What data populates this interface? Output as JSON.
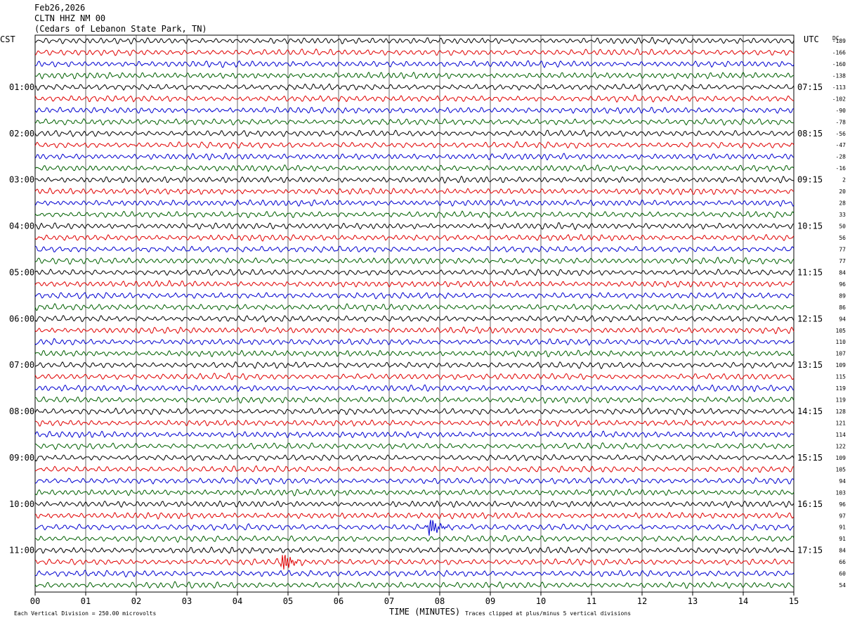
{
  "header": {
    "date": "Feb26,2026",
    "station": "CLTN HHZ NM 00",
    "location": "(Cedars of Lebanon State Park, TN)"
  },
  "chart_data": {
    "type": "line",
    "title": "",
    "xlabel": "TIME (MINUTES)",
    "left_zone_label": "CST",
    "right_zone_label": "UTC",
    "dc_header": "DC",
    "x_ticks": [
      "00",
      "01",
      "02",
      "03",
      "04",
      "05",
      "06",
      "07",
      "08",
      "09",
      "10",
      "11",
      "12",
      "13",
      "14",
      "15"
    ],
    "xlim": [
      0,
      15
    ],
    "grid": true,
    "cst_hour_labels": [
      "01:00",
      "02:00",
      "03:00",
      "04:00",
      "05:00",
      "06:00",
      "07:00",
      "08:00",
      "09:00",
      "10:00",
      "11:00"
    ],
    "utc_hour_labels": [
      "07:15",
      "08:15",
      "09:15",
      "10:15",
      "11:15",
      "12:15",
      "13:15",
      "14:15",
      "15:15",
      "16:15",
      "17:15"
    ],
    "trace_colors": [
      "#000000",
      "#e00000",
      "#0000d0",
      "#006000"
    ],
    "dc_offsets": [
      -189,
      -166,
      -160,
      -138,
      -113,
      -102,
      -90,
      -78,
      -56,
      -47,
      -28,
      -16,
      2,
      20,
      28,
      33,
      50,
      56,
      77,
      77,
      84,
      96,
      89,
      86,
      94,
      105,
      110,
      107,
      109,
      115,
      119,
      119,
      128,
      121,
      114,
      122,
      109,
      105,
      94,
      103,
      96,
      97,
      91,
      91,
      84,
      66,
      60,
      54
    ],
    "events": [
      {
        "trace": 42,
        "minute": 7.8
      },
      {
        "trace": 45,
        "minute": 4.9
      }
    ],
    "footer_left": "Each Vertical Division =  250.00 microvolts",
    "footer_right": "Traces clipped at plus/minus 5 vertical divisions"
  }
}
